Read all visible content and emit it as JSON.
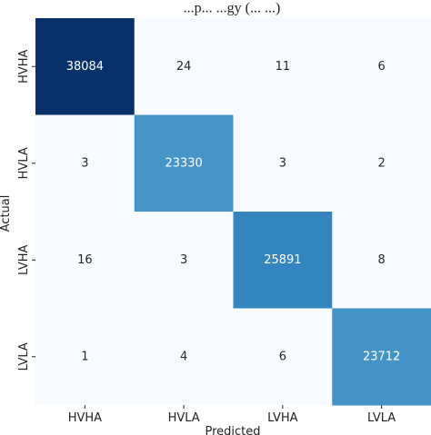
{
  "chart_data": {
    "type": "heatmap",
    "title": "...p... ...gy (... ...)",
    "xlabel": "Predicted",
    "ylabel": "Actual",
    "x_categories": [
      "HVHA",
      "HVLA",
      "LVHA",
      "LVLA"
    ],
    "y_categories": [
      "HVHA",
      "HVLA",
      "LVHA",
      "LVLA"
    ],
    "values": [
      [
        38084,
        24,
        11,
        6
      ],
      [
        3,
        23330,
        3,
        2
      ],
      [
        16,
        3,
        25891,
        8
      ],
      [
        1,
        4,
        6,
        23712
      ]
    ],
    "colormap": "Blues",
    "value_range": [
      0,
      38084
    ],
    "colorbar": false
  }
}
